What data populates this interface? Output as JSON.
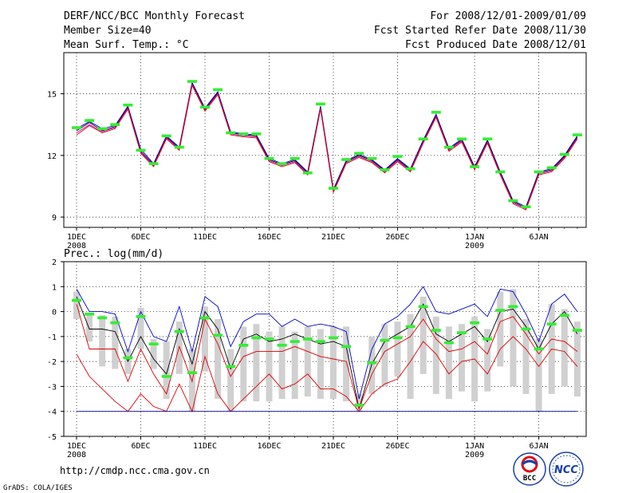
{
  "header": {
    "title": "DERF/NCC/BCC Monthly Forecast",
    "member_size": "Member Size=40",
    "variable": "Mean Surf. Temp.: °C",
    "period": "For 2008/12/01-2009/01/09",
    "started": "Fcst Started Refer Date 2008/11/30",
    "produced": "Fcst Produced Date 2008/12/01"
  },
  "footer": {
    "url": "http://cmdp.ncc.cma.gov.cn",
    "grads": "GrADS: COLA/IGES",
    "logo_left": "BCC",
    "logo_right": "NCC"
  },
  "x_ticks": [
    {
      "day": 0,
      "label": "1DEC",
      "sub": "2008"
    },
    {
      "day": 5,
      "label": "6DEC",
      "sub": ""
    },
    {
      "day": 10,
      "label": "11DEC",
      "sub": ""
    },
    {
      "day": 15,
      "label": "16DEC",
      "sub": ""
    },
    {
      "day": 20,
      "label": "21DEC",
      "sub": ""
    },
    {
      "day": 25,
      "label": "26DEC",
      "sub": ""
    },
    {
      "day": 31,
      "label": "1JAN",
      "sub": "2009"
    },
    {
      "day": 36,
      "label": "6JAN",
      "sub": ""
    }
  ],
  "colors": {
    "green": "#33ee33",
    "box": "#d0d0d0",
    "blue": "#0000cc",
    "red": "#dd0000",
    "purple": "#cc00cc",
    "navy": "#000099"
  },
  "chart_data": [
    {
      "type": "line",
      "title": "Mean Surf. Temp.: °C",
      "ylim": [
        8.5,
        17
      ],
      "yticks": [
        9,
        12,
        15
      ],
      "grid": true,
      "x_days": [
        0,
        1,
        2,
        3,
        4,
        5,
        6,
        7,
        8,
        9,
        10,
        11,
        12,
        13,
        14,
        15,
        16,
        17,
        18,
        19,
        20,
        21,
        22,
        23,
        24,
        25,
        26,
        27,
        28,
        29,
        30,
        31,
        32,
        33,
        34,
        35,
        36,
        37,
        38,
        39
      ],
      "observed_marks": [
        13.35,
        13.7,
        13.3,
        13.5,
        14.45,
        12.25,
        11.6,
        12.95,
        12.4,
        15.6,
        14.35,
        15.2,
        13.1,
        13.05,
        13.05,
        11.85,
        11.6,
        11.85,
        11.15,
        14.5,
        10.4,
        11.8,
        12.1,
        11.85,
        11.3,
        11.95,
        11.35,
        12.8,
        14.1,
        12.4,
        12.8,
        11.45,
        12.8,
        11.2,
        9.8,
        9.5,
        11.2,
        11.4,
        12.05,
        13.0
      ],
      "series": [
        {
          "name": "ensemble-blue",
          "values": [
            13.3,
            13.65,
            13.3,
            13.45,
            14.4,
            12.3,
            11.6,
            12.95,
            12.4,
            15.55,
            14.3,
            15.1,
            13.15,
            13.05,
            13.0,
            11.85,
            11.6,
            11.8,
            11.2,
            14.4,
            10.35,
            11.75,
            12.05,
            11.8,
            11.3,
            11.85,
            11.35,
            12.75,
            14.0,
            12.35,
            12.8,
            11.45,
            12.75,
            11.2,
            9.8,
            9.5,
            11.2,
            11.35,
            12.0,
            12.95
          ]
        },
        {
          "name": "ensemble-black",
          "values": [
            13.2,
            13.6,
            13.2,
            13.4,
            14.35,
            12.2,
            11.55,
            12.9,
            12.35,
            15.5,
            14.25,
            15.05,
            13.1,
            13.0,
            12.95,
            11.8,
            11.55,
            11.75,
            11.15,
            14.35,
            10.3,
            11.7,
            12.0,
            11.75,
            11.25,
            11.8,
            11.3,
            12.7,
            13.95,
            12.3,
            12.75,
            11.4,
            12.7,
            11.15,
            9.75,
            9.45,
            11.15,
            11.3,
            11.95,
            12.9
          ]
        },
        {
          "name": "ensemble-purple",
          "values": [
            13.1,
            13.5,
            13.15,
            13.35,
            14.3,
            12.15,
            11.5,
            12.85,
            12.3,
            15.45,
            14.2,
            15.0,
            13.05,
            12.95,
            12.9,
            11.75,
            11.5,
            11.7,
            11.1,
            14.3,
            10.25,
            11.65,
            11.95,
            11.7,
            11.2,
            11.75,
            11.25,
            12.65,
            13.9,
            12.25,
            12.7,
            11.35,
            12.65,
            11.1,
            9.7,
            9.4,
            11.1,
            11.25,
            11.9,
            12.85
          ]
        },
        {
          "name": "ensemble-red",
          "values": [
            13.0,
            13.45,
            13.1,
            13.3,
            14.25,
            12.1,
            11.45,
            12.8,
            12.25,
            15.4,
            14.15,
            14.95,
            13.0,
            12.9,
            12.85,
            11.7,
            11.45,
            11.65,
            11.05,
            14.25,
            10.2,
            11.6,
            11.9,
            11.65,
            11.15,
            11.7,
            11.2,
            12.6,
            13.85,
            12.2,
            12.65,
            11.3,
            12.6,
            11.05,
            9.65,
            9.35,
            11.05,
            11.2,
            11.85,
            12.8
          ]
        }
      ]
    },
    {
      "type": "line",
      "title": "Prec.: log(mm/d)",
      "ylim": [
        -5,
        2
      ],
      "yticks": [
        -5,
        -4,
        -3,
        -2,
        -1,
        0,
        1,
        2
      ],
      "grid": true,
      "x_days": [
        0,
        1,
        2,
        3,
        4,
        5,
        6,
        7,
        8,
        9,
        10,
        11,
        12,
        13,
        14,
        15,
        16,
        17,
        18,
        19,
        20,
        21,
        22,
        23,
        24,
        25,
        26,
        27,
        28,
        29,
        30,
        31,
        32,
        33,
        34,
        35,
        36,
        37,
        38,
        39
      ],
      "observed_marks": [
        0.45,
        -0.1,
        -0.25,
        -0.45,
        -1.85,
        -0.2,
        -1.3,
        -2.6,
        -0.8,
        -2.45,
        -0.25,
        -0.95,
        -2.2,
        -1.35,
        -1.05,
        -1.1,
        -1.35,
        -1.2,
        -1.1,
        -1.2,
        -1.05,
        -1.4,
        -3.75,
        -2.05,
        -1.15,
        -1.05,
        -0.6,
        0.2,
        -0.75,
        -1.25,
        -0.85,
        -0.45,
        -1.1,
        0.05,
        0.2,
        -0.7,
        -1.5,
        -0.5,
        -0.15,
        -0.75
      ],
      "box_low": [
        -0.3,
        -1.2,
        -2.2,
        -2.3,
        -2.5,
        -1.5,
        -2.3,
        -3.5,
        -2.5,
        -4.0,
        -2.4,
        -3.5,
        -4.0,
        -3.6,
        -3.6,
        -3.6,
        -3.5,
        -3.5,
        -3.4,
        -3.5,
        -3.5,
        -3.6,
        -4.0,
        -3.3,
        -3.0,
        -2.6,
        -3.5,
        -2.5,
        -3.3,
        -3.5,
        -3.2,
        -3.6,
        -3.2,
        -2.2,
        -3.0,
        -3.3,
        -4.0,
        -3.3,
        -3.0,
        -3.4
      ],
      "box_high": [
        0.8,
        -0.05,
        -0.15,
        -0.2,
        -1.5,
        0.15,
        -1.1,
        -1.2,
        -0.4,
        -1.5,
        0.2,
        -0.3,
        -1.5,
        -0.6,
        -0.5,
        -0.8,
        -0.6,
        -0.8,
        -0.6,
        -0.7,
        -0.6,
        -0.6,
        -3.3,
        -1.0,
        -0.5,
        -0.4,
        -0.1,
        0.6,
        -0.2,
        -0.6,
        -0.5,
        -0.2,
        -0.7,
        0.8,
        0.9,
        -0.3,
        -1.1,
        0.3,
        0.1,
        -0.4
      ],
      "series": [
        {
          "name": "max-blue",
          "values": [
            0.9,
            0.0,
            0.0,
            -0.1,
            -1.6,
            0.0,
            -1.0,
            -1.2,
            0.2,
            -1.6,
            0.6,
            0.2,
            -1.4,
            -0.4,
            -0.1,
            -0.1,
            -0.6,
            -0.3,
            -0.6,
            -0.5,
            -0.6,
            -0.8,
            -3.5,
            -1.5,
            -0.5,
            -0.2,
            0.3,
            1.0,
            0.0,
            -0.1,
            0.1,
            0.3,
            -0.2,
            0.9,
            0.8,
            -0.1,
            -1.2,
            0.3,
            0.7,
            0.0
          ]
        },
        {
          "name": "mean-black",
          "values": [
            0.6,
            -0.7,
            -0.7,
            -0.8,
            -2.0,
            -1.0,
            -1.9,
            -2.5,
            -0.7,
            -2.1,
            0.0,
            -0.7,
            -2.3,
            -1.1,
            -0.9,
            -1.2,
            -1.1,
            -0.9,
            -1.1,
            -1.3,
            -1.2,
            -1.4,
            -3.9,
            -2.1,
            -1.2,
            -0.9,
            -0.6,
            0.3,
            -0.9,
            -1.2,
            -0.9,
            -0.6,
            -1.2,
            0.0,
            0.1,
            -0.6,
            -1.5,
            -0.5,
            0.0,
            -0.9
          ]
        },
        {
          "name": "q-red",
          "values": [
            0.3,
            -1.5,
            -1.5,
            -1.5,
            -2.8,
            -1.5,
            -2.5,
            -3.3,
            -1.4,
            -2.8,
            -0.3,
            -1.3,
            -2.6,
            -1.8,
            -1.6,
            -1.6,
            -1.6,
            -1.4,
            -1.6,
            -1.8,
            -1.9,
            -2.0,
            -3.9,
            -2.5,
            -1.6,
            -1.3,
            -1.0,
            -0.3,
            -1.1,
            -1.6,
            -1.5,
            -1.2,
            -1.7,
            -0.4,
            -0.2,
            -0.9,
            -1.7,
            -1.1,
            -1.2,
            -1.6
          ]
        },
        {
          "name": "min-red",
          "values": [
            -1.7,
            -2.6,
            -3.1,
            -3.6,
            -4.0,
            -3.3,
            -3.8,
            -4.0,
            -2.9,
            -4.0,
            -1.8,
            -3.3,
            -4.0,
            -3.5,
            -3.0,
            -2.5,
            -3.1,
            -2.9,
            -2.5,
            -3.1,
            -3.1,
            -3.4,
            -4.0,
            -3.3,
            -2.9,
            -2.7,
            -2.0,
            -1.2,
            -1.7,
            -2.5,
            -2.0,
            -1.9,
            -2.5,
            -1.5,
            -1.0,
            -1.5,
            -2.2,
            -1.5,
            -1.6,
            -2.2
          ]
        },
        {
          "name": "floor-navy",
          "values": [
            -4,
            -4,
            -4,
            -4,
            -4,
            -4,
            -4,
            -4,
            -4,
            -4,
            -4,
            -4,
            -4,
            -4,
            -4,
            -4,
            -4,
            -4,
            -4,
            -4,
            -4,
            -4,
            -4,
            -4,
            -4,
            -4,
            -4,
            -4,
            -4,
            -4,
            -4,
            -4,
            -4,
            -4,
            -4,
            -4,
            -4,
            -4,
            -4,
            -4
          ]
        }
      ]
    }
  ]
}
